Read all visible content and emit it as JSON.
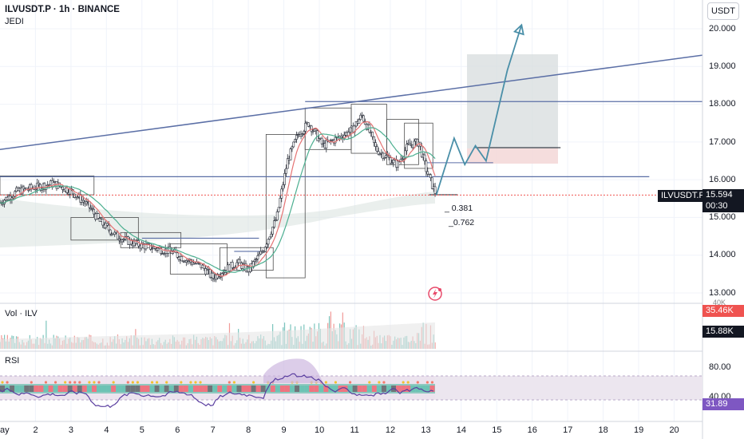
{
  "legend": {
    "title": "ILVUSDT.P · 1h · BINANCE",
    "indicator": "JEDI"
  },
  "currency_button": "USDT",
  "price_axis": {
    "ticks": [
      "20.000",
      "19.000",
      "18.000",
      "17.000",
      "16.000",
      "15.000",
      "14.000",
      "13.000"
    ],
    "last_symbol": "ILVUSDT.P",
    "last_price": "15.594",
    "countdown": "00:30"
  },
  "fib_labels": [
    "0.381",
    "0.762"
  ],
  "volume_pane": {
    "label": "Vol · ILV",
    "value_red": "35.46K",
    "value_black": "15.88K",
    "cut_label": "40K"
  },
  "rsi_pane": {
    "label": "RSI",
    "level_upper": "80.00",
    "level_lower": "40.00",
    "value": "31.89"
  },
  "time_axis": {
    "labels": [
      "ay",
      "2",
      "3",
      "4",
      "5",
      "6",
      "7",
      "8",
      "9",
      "10",
      "11",
      "12",
      "13",
      "14",
      "15",
      "16",
      "17",
      "18",
      "19",
      "20"
    ]
  },
  "colors": {
    "up": "#26a69a",
    "down": "#ef5350",
    "trendline": "#5b6fa6",
    "accent_blue": "#2962ff",
    "rsi_line": "#5b3fa0"
  },
  "chart_data": {
    "type": "candlestick",
    "symbol": "ILVUSDT.P",
    "interval": "1h",
    "exchange": "BINANCE",
    "y_range": [
      12.9,
      20.5
    ],
    "x_range_days": [
      1,
      20.8
    ],
    "price_path": [
      {
        "x": 1.0,
        "y": 15.4
      },
      {
        "x": 1.5,
        "y": 15.7
      },
      {
        "x": 2.0,
        "y": 15.8
      },
      {
        "x": 2.5,
        "y": 15.9
      },
      {
        "x": 3.0,
        "y": 15.7
      },
      {
        "x": 3.5,
        "y": 15.3
      },
      {
        "x": 3.8,
        "y": 14.9
      },
      {
        "x": 4.3,
        "y": 14.5
      },
      {
        "x": 4.8,
        "y": 14.3
      },
      {
        "x": 5.3,
        "y": 14.2
      },
      {
        "x": 5.8,
        "y": 14.1
      },
      {
        "x": 6.2,
        "y": 13.9
      },
      {
        "x": 6.7,
        "y": 13.7
      },
      {
        "x": 7.0,
        "y": 13.4
      },
      {
        "x": 7.3,
        "y": 13.6
      },
      {
        "x": 7.7,
        "y": 13.8
      },
      {
        "x": 8.0,
        "y": 13.6
      },
      {
        "x": 8.4,
        "y": 14.1
      },
      {
        "x": 8.8,
        "y": 15.0
      },
      {
        "x": 9.1,
        "y": 16.5
      },
      {
        "x": 9.4,
        "y": 17.2
      },
      {
        "x": 9.7,
        "y": 17.5
      },
      {
        "x": 10.1,
        "y": 16.9
      },
      {
        "x": 10.5,
        "y": 17.1
      },
      {
        "x": 10.9,
        "y": 17.3
      },
      {
        "x": 11.2,
        "y": 17.7
      },
      {
        "x": 11.4,
        "y": 17.3
      },
      {
        "x": 11.6,
        "y": 16.8
      },
      {
        "x": 11.9,
        "y": 16.6
      },
      {
        "x": 12.2,
        "y": 16.4
      },
      {
        "x": 12.5,
        "y": 16.9
      },
      {
        "x": 12.8,
        "y": 17.0
      },
      {
        "x": 13.0,
        "y": 16.3
      },
      {
        "x": 13.2,
        "y": 15.8
      },
      {
        "x": 13.3,
        "y": 15.594
      }
    ],
    "projection": [
      {
        "x": 13.3,
        "y": 15.6
      },
      {
        "x": 13.8,
        "y": 17.1
      },
      {
        "x": 14.1,
        "y": 16.4
      },
      {
        "x": 14.4,
        "y": 16.9
      },
      {
        "x": 14.7,
        "y": 16.5
      },
      {
        "x": 15.3,
        "y": 18.9
      },
      {
        "x": 15.7,
        "y": 20.1
      }
    ],
    "trendline": [
      {
        "x": 1.0,
        "y": 16.8
      },
      {
        "x": 20.8,
        "y": 19.3
      }
    ],
    "horizontal_levels": [
      18.07,
      16.08
    ],
    "last_price": 15.594,
    "rsi_levels": [
      80,
      40
    ],
    "rsi_last": 31.89,
    "volume_last": [
      "35.46K",
      "15.88K"
    ]
  }
}
